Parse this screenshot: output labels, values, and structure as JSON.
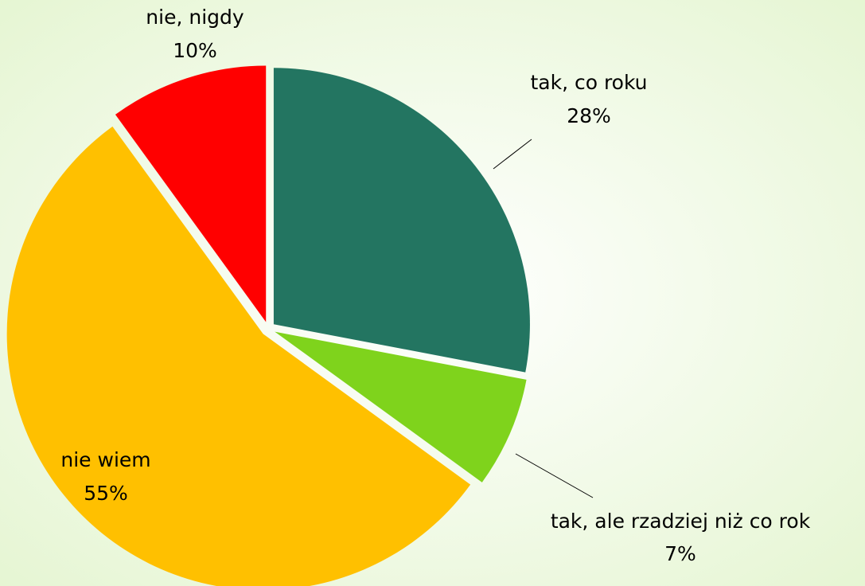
{
  "chart_data": {
    "type": "pie",
    "categories": [
      "tak, co roku",
      "tak, ale rzadziej niż co rok",
      "nie wiem",
      "nie, nigdy"
    ],
    "values": [
      28,
      7,
      55,
      10
    ],
    "value_labels": [
      "28%",
      "7%",
      "55%",
      "10%"
    ],
    "colors": [
      "#237561",
      "#7fd31c",
      "#ffc000",
      "#ff0000"
    ]
  }
}
